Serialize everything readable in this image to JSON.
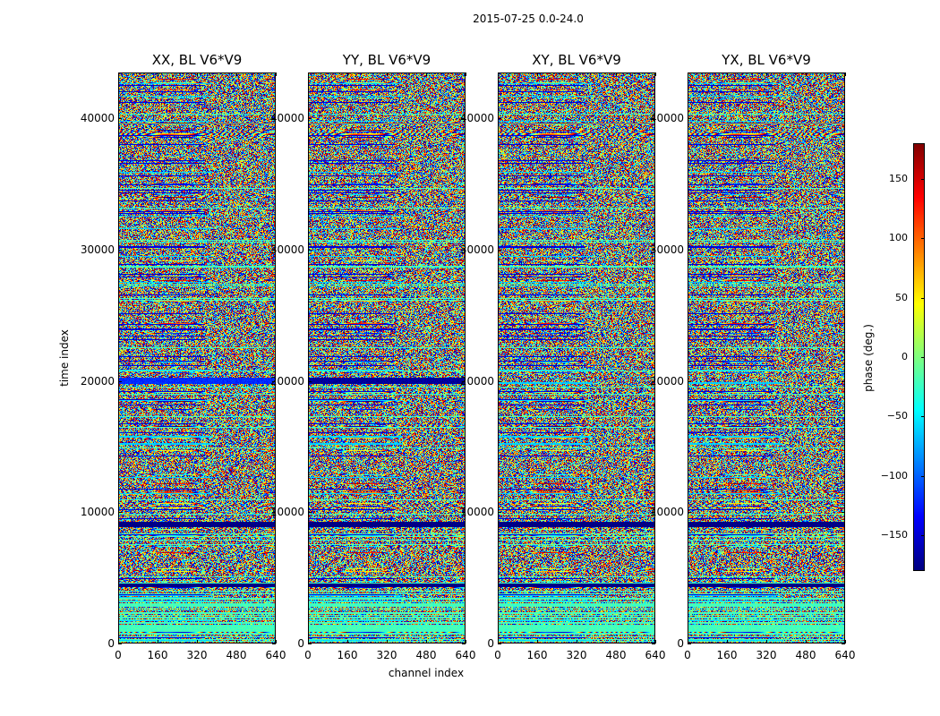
{
  "figure_title": "2015-07-25 0.0-24.0",
  "chart_data": {
    "type": "heatmap",
    "panels": [
      {
        "title": "XX, BL V6*V9",
        "polarization": "XX",
        "baseline": "V6*V9"
      },
      {
        "title": "YY, BL V6*V9",
        "polarization": "YY",
        "baseline": "V6*V9"
      },
      {
        "title": "XY, BL V6*V9",
        "polarization": "XY",
        "baseline": "V6*V9"
      },
      {
        "title": "YX, BL V6*V9",
        "polarization": "YX",
        "baseline": "V6*V9"
      }
    ],
    "xlabel": "channel index",
    "ylabel": "time index",
    "xlim": [
      0,
      640
    ],
    "ylim": [
      0,
      43500
    ],
    "xticks": [
      0,
      160,
      320,
      480,
      640
    ],
    "xtick_labels": [
      "0",
      "160",
      "320",
      "480",
      "640"
    ],
    "yticks": [
      0,
      10000,
      20000,
      30000,
      40000
    ],
    "ytick_labels": [
      "0",
      "10000",
      "20000",
      "30000",
      "40000"
    ],
    "colorbar": {
      "label": "phase (deg.)",
      "range": [
        -180,
        180
      ],
      "ticks": [
        -150,
        -100,
        -50,
        0,
        50,
        100,
        150
      ],
      "tick_labels": [
        "−150",
        "−100",
        "−50",
        "0",
        "50",
        "100",
        "150"
      ],
      "colormap": "jet"
    },
    "notable_features": [
      {
        "panel": "all",
        "time_range": [
          4300,
          4600
        ],
        "phase": -180,
        "note": "solid band"
      },
      {
        "panel": "all",
        "time_range": [
          8900,
          9300
        ],
        "phase": -180,
        "note": "solid band"
      },
      {
        "panel": "YY",
        "time_range": [
          19800,
          20300
        ],
        "phase": -170,
        "note": "low-phase band"
      },
      {
        "panel": "XX",
        "time_range": [
          19800,
          20300
        ],
        "phase": -120,
        "note": "cyan-blue band"
      }
    ]
  }
}
